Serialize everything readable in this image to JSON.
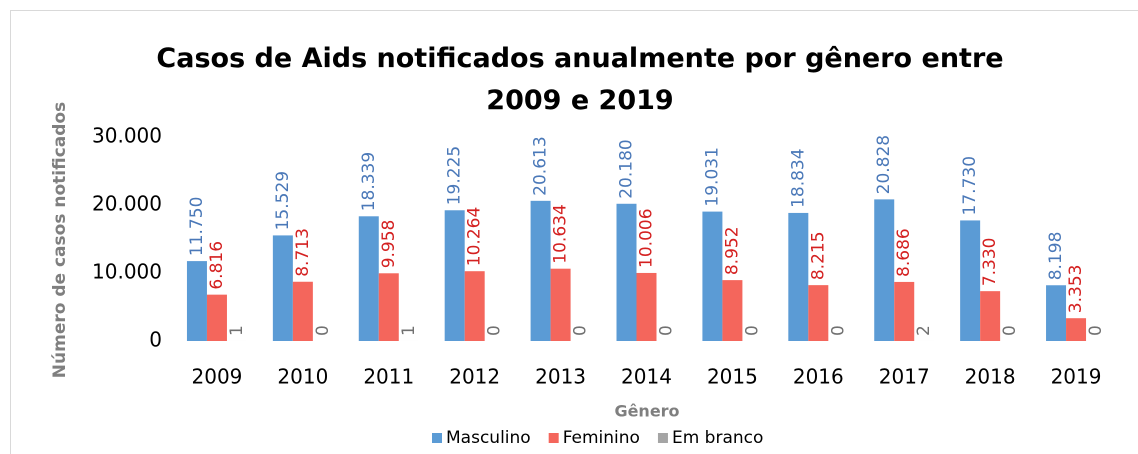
{
  "chart_data": {
    "type": "bar",
    "title": "Casos de Aids notificados anualmente por gênero entre 2009 e 2019",
    "y_label": "Número de casos notificados",
    "x_label": "Gênero",
    "categories": [
      "2009",
      "2010",
      "2011",
      "2012",
      "2013",
      "2014",
      "2015",
      "2016",
      "2017",
      "2018",
      "2019"
    ],
    "series": [
      {
        "name": "Masculino",
        "color": "#5b9bd5",
        "label_color": "#4a78b8",
        "values": [
          11750,
          15529,
          18339,
          19225,
          20613,
          20180,
          19031,
          18834,
          20828,
          17730,
          8198
        ],
        "value_labels": [
          "11.750",
          "15.529",
          "18.339",
          "19.225",
          "20.613",
          "20.180",
          "19.031",
          "18.834",
          "20.828",
          "17.730",
          "8.198"
        ]
      },
      {
        "name": "Feminino",
        "color": "#f4665c",
        "label_color": "#d42020",
        "values": [
          6816,
          8713,
          9958,
          10264,
          10634,
          10006,
          8952,
          8215,
          8686,
          7330,
          3353
        ],
        "value_labels": [
          "6.816",
          "8.713",
          "9.958",
          "10.264",
          "10.634",
          "10.006",
          "8.952",
          "8.215",
          "8.686",
          "7.330",
          "3.353"
        ]
      },
      {
        "name": "Em branco",
        "color": "#a5a5a5",
        "label_color": "#707070",
        "values": [
          1,
          0,
          1,
          0,
          0,
          0,
          0,
          0,
          2,
          0,
          0
        ]
      }
    ],
    "ylim": [
      0,
      30000
    ],
    "yticks": [
      0,
      {
        "value": 10000,
        "label": "10.000"
      },
      {
        "value": 20000,
        "label": "20.000"
      },
      {
        "value": 30000,
        "label": "30.000"
      }
    ],
    "legend": "bottom"
  }
}
